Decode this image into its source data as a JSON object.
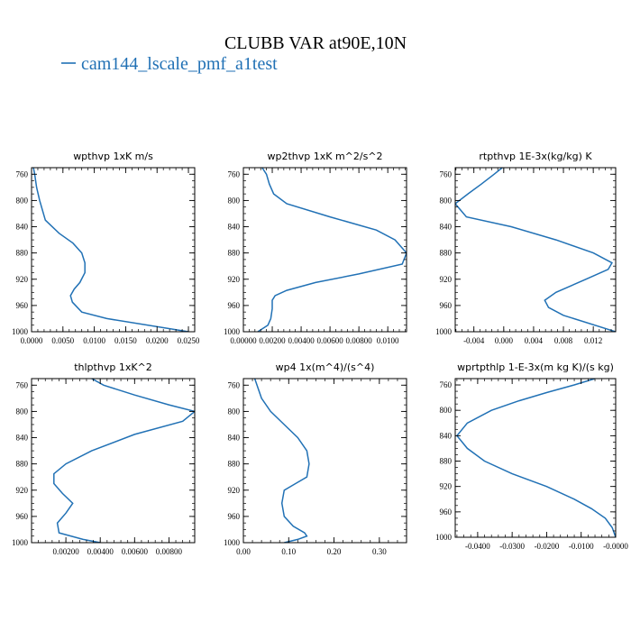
{
  "figure": {
    "title": "CLUBB VAR at90E,10N",
    "legend_label": "cam144_lscale_pmf_a1test",
    "line_color": "#2171b5"
  },
  "chart_data": [
    {
      "type": "line",
      "title": "wpthvp  1xK m/s",
      "xlim": [
        0,
        0.026
      ],
      "ylim": [
        1000,
        750
      ],
      "xticks": [
        0,
        0.005,
        0.01,
        0.015,
        0.02,
        0.025
      ],
      "xtick_labels": [
        "0.0000",
        "0.0050",
        "0.0100",
        "0.0150",
        "0.0200",
        "0.0250"
      ],
      "yticks": [
        760,
        800,
        840,
        880,
        920,
        960,
        1000
      ],
      "ytick_labels": [
        "760",
        "800",
        "840",
        "880",
        "920",
        "960",
        "1000"
      ],
      "series": [
        {
          "x": [
            0.0003,
            0.0005,
            0.0008,
            0.0013,
            0.0022,
            0.0044,
            0.0066,
            0.008,
            0.0085,
            0.0085,
            0.0077,
            0.0068,
            0.0062,
            0.0065,
            0.008,
            0.012,
            0.025
          ],
          "y": [
            750,
            760,
            780,
            800,
            830,
            850,
            865,
            880,
            895,
            910,
            925,
            935,
            945,
            955,
            970,
            980,
            1000
          ]
        }
      ]
    },
    {
      "type": "line",
      "title": "wp2thvp  1xK m^2/s^2",
      "xlim": [
        0,
        0.0113
      ],
      "ylim": [
        1000,
        750
      ],
      "xticks": [
        0,
        0.002,
        0.004,
        0.006,
        0.008,
        0.01
      ],
      "xtick_labels": [
        "0.00000",
        "0.00200",
        "0.00400",
        "0.00600",
        "0.00800",
        "0.0100"
      ],
      "yticks": [
        760,
        800,
        840,
        880,
        920,
        960,
        1000
      ],
      "ytick_labels": [
        "760",
        "800",
        "840",
        "880",
        "920",
        "960",
        "1000"
      ],
      "series": [
        {
          "x": [
            0.0013,
            0.0016,
            0.0018,
            0.0021,
            0.003,
            0.006,
            0.0092,
            0.0105,
            0.0113,
            0.011,
            0.008,
            0.005,
            0.003,
            0.0022,
            0.002,
            0.002,
            0.0019,
            0.0017,
            0.001
          ],
          "y": [
            750,
            760,
            775,
            790,
            805,
            825,
            845,
            860,
            880,
            897,
            912,
            925,
            937,
            945,
            952,
            965,
            980,
            990,
            1000
          ]
        }
      ]
    },
    {
      "type": "line",
      "title": "rtpthvp  1E-3x(kg/kg) K",
      "xlim": [
        -0.0065,
        0.015
      ],
      "ylim": [
        1000,
        750
      ],
      "xticks": [
        -0.004,
        0.0,
        0.004,
        0.008,
        0.012
      ],
      "xtick_labels": [
        "-0.004",
        "0.000",
        "0.004",
        "0.008",
        "0.012"
      ],
      "yticks": [
        760,
        800,
        840,
        880,
        920,
        960,
        1000
      ],
      "ytick_labels": [
        "760",
        "800",
        "840",
        "880",
        "920",
        "960",
        "1000"
      ],
      "series": [
        {
          "x": [
            -0.0002,
            -0.0013,
            -0.003,
            -0.0048,
            -0.0065,
            -0.005,
            0.001,
            0.007,
            0.012,
            0.0145,
            0.014,
            0.011,
            0.007,
            0.0055,
            0.006,
            0.008,
            0.015
          ],
          "y": [
            750,
            760,
            775,
            790,
            805,
            825,
            840,
            860,
            880,
            895,
            905,
            920,
            940,
            952,
            963,
            975,
            1000
          ]
        }
      ]
    },
    {
      "type": "line",
      "title": "thlpthvp  1xK^2",
      "xlim": [
        0,
        0.0095
      ],
      "ylim": [
        1000,
        750
      ],
      "xticks": [
        0.002,
        0.004,
        0.006,
        0.008
      ],
      "xtick_labels": [
        "0.00200",
        "0.00400",
        "0.00600",
        "0.00800"
      ],
      "yticks": [
        760,
        800,
        840,
        880,
        920,
        960,
        1000
      ],
      "ytick_labels": [
        "760",
        "800",
        "840",
        "880",
        "920",
        "960",
        "1000"
      ],
      "series": [
        {
          "x": [
            0.0035,
            0.0042,
            0.006,
            0.008,
            0.0095,
            0.0088,
            0.006,
            0.0035,
            0.002,
            0.0013,
            0.0013,
            0.0018,
            0.0024,
            0.002,
            0.0015,
            0.0016,
            0.003,
            0.004
          ],
          "y": [
            750,
            760,
            775,
            790,
            800,
            815,
            835,
            860,
            880,
            895,
            910,
            925,
            940,
            955,
            970,
            985,
            995,
            1000
          ]
        }
      ]
    },
    {
      "type": "line",
      "title": "wp4  1x(m^4)/(s^4)",
      "xlim": [
        0,
        0.36
      ],
      "ylim": [
        1000,
        750
      ],
      "xticks": [
        0.0,
        0.1,
        0.2,
        0.3
      ],
      "xtick_labels": [
        "0.00",
        "0.10",
        "0.20",
        "0.30"
      ],
      "yticks": [
        760,
        800,
        840,
        880,
        920,
        960,
        1000
      ],
      "ytick_labels": [
        "760",
        "800",
        "840",
        "880",
        "920",
        "960",
        "1000"
      ],
      "series": [
        {
          "x": [
            0.025,
            0.03,
            0.04,
            0.06,
            0.09,
            0.12,
            0.14,
            0.145,
            0.14,
            0.115,
            0.09,
            0.085,
            0.09,
            0.11,
            0.135,
            0.14,
            0.12,
            0.09
          ],
          "y": [
            750,
            760,
            780,
            800,
            820,
            840,
            860,
            880,
            900,
            910,
            920,
            940,
            960,
            975,
            985,
            990,
            995,
            1000
          ]
        }
      ]
    },
    {
      "type": "line",
      "title": "wprtpthlp  1-E-3x(m kg K)/(s kg)",
      "xlim": [
        -0.0465,
        0.0
      ],
      "ylim": [
        1000,
        750
      ],
      "xticks": [
        -0.04,
        -0.03,
        -0.02,
        -0.01,
        0.0
      ],
      "xtick_labels": [
        "-0.0400",
        "-0.0300",
        "-0.0200",
        "-0.0100",
        "-0.0000"
      ],
      "yticks": [
        760,
        800,
        840,
        880,
        920,
        960,
        1000
      ],
      "ytick_labels": [
        "760",
        "800",
        "840",
        "880",
        "920",
        "960",
        "1000"
      ],
      "series": [
        {
          "x": [
            -0.006,
            -0.012,
            -0.02,
            -0.028,
            -0.036,
            -0.043,
            -0.046,
            -0.043,
            -0.038,
            -0.03,
            -0.02,
            -0.012,
            -0.007,
            -0.003,
            -0.001,
            0.0
          ],
          "y": [
            750,
            760,
            772,
            785,
            800,
            820,
            840,
            860,
            880,
            900,
            920,
            940,
            955,
            970,
            985,
            1000
          ]
        }
      ]
    }
  ]
}
